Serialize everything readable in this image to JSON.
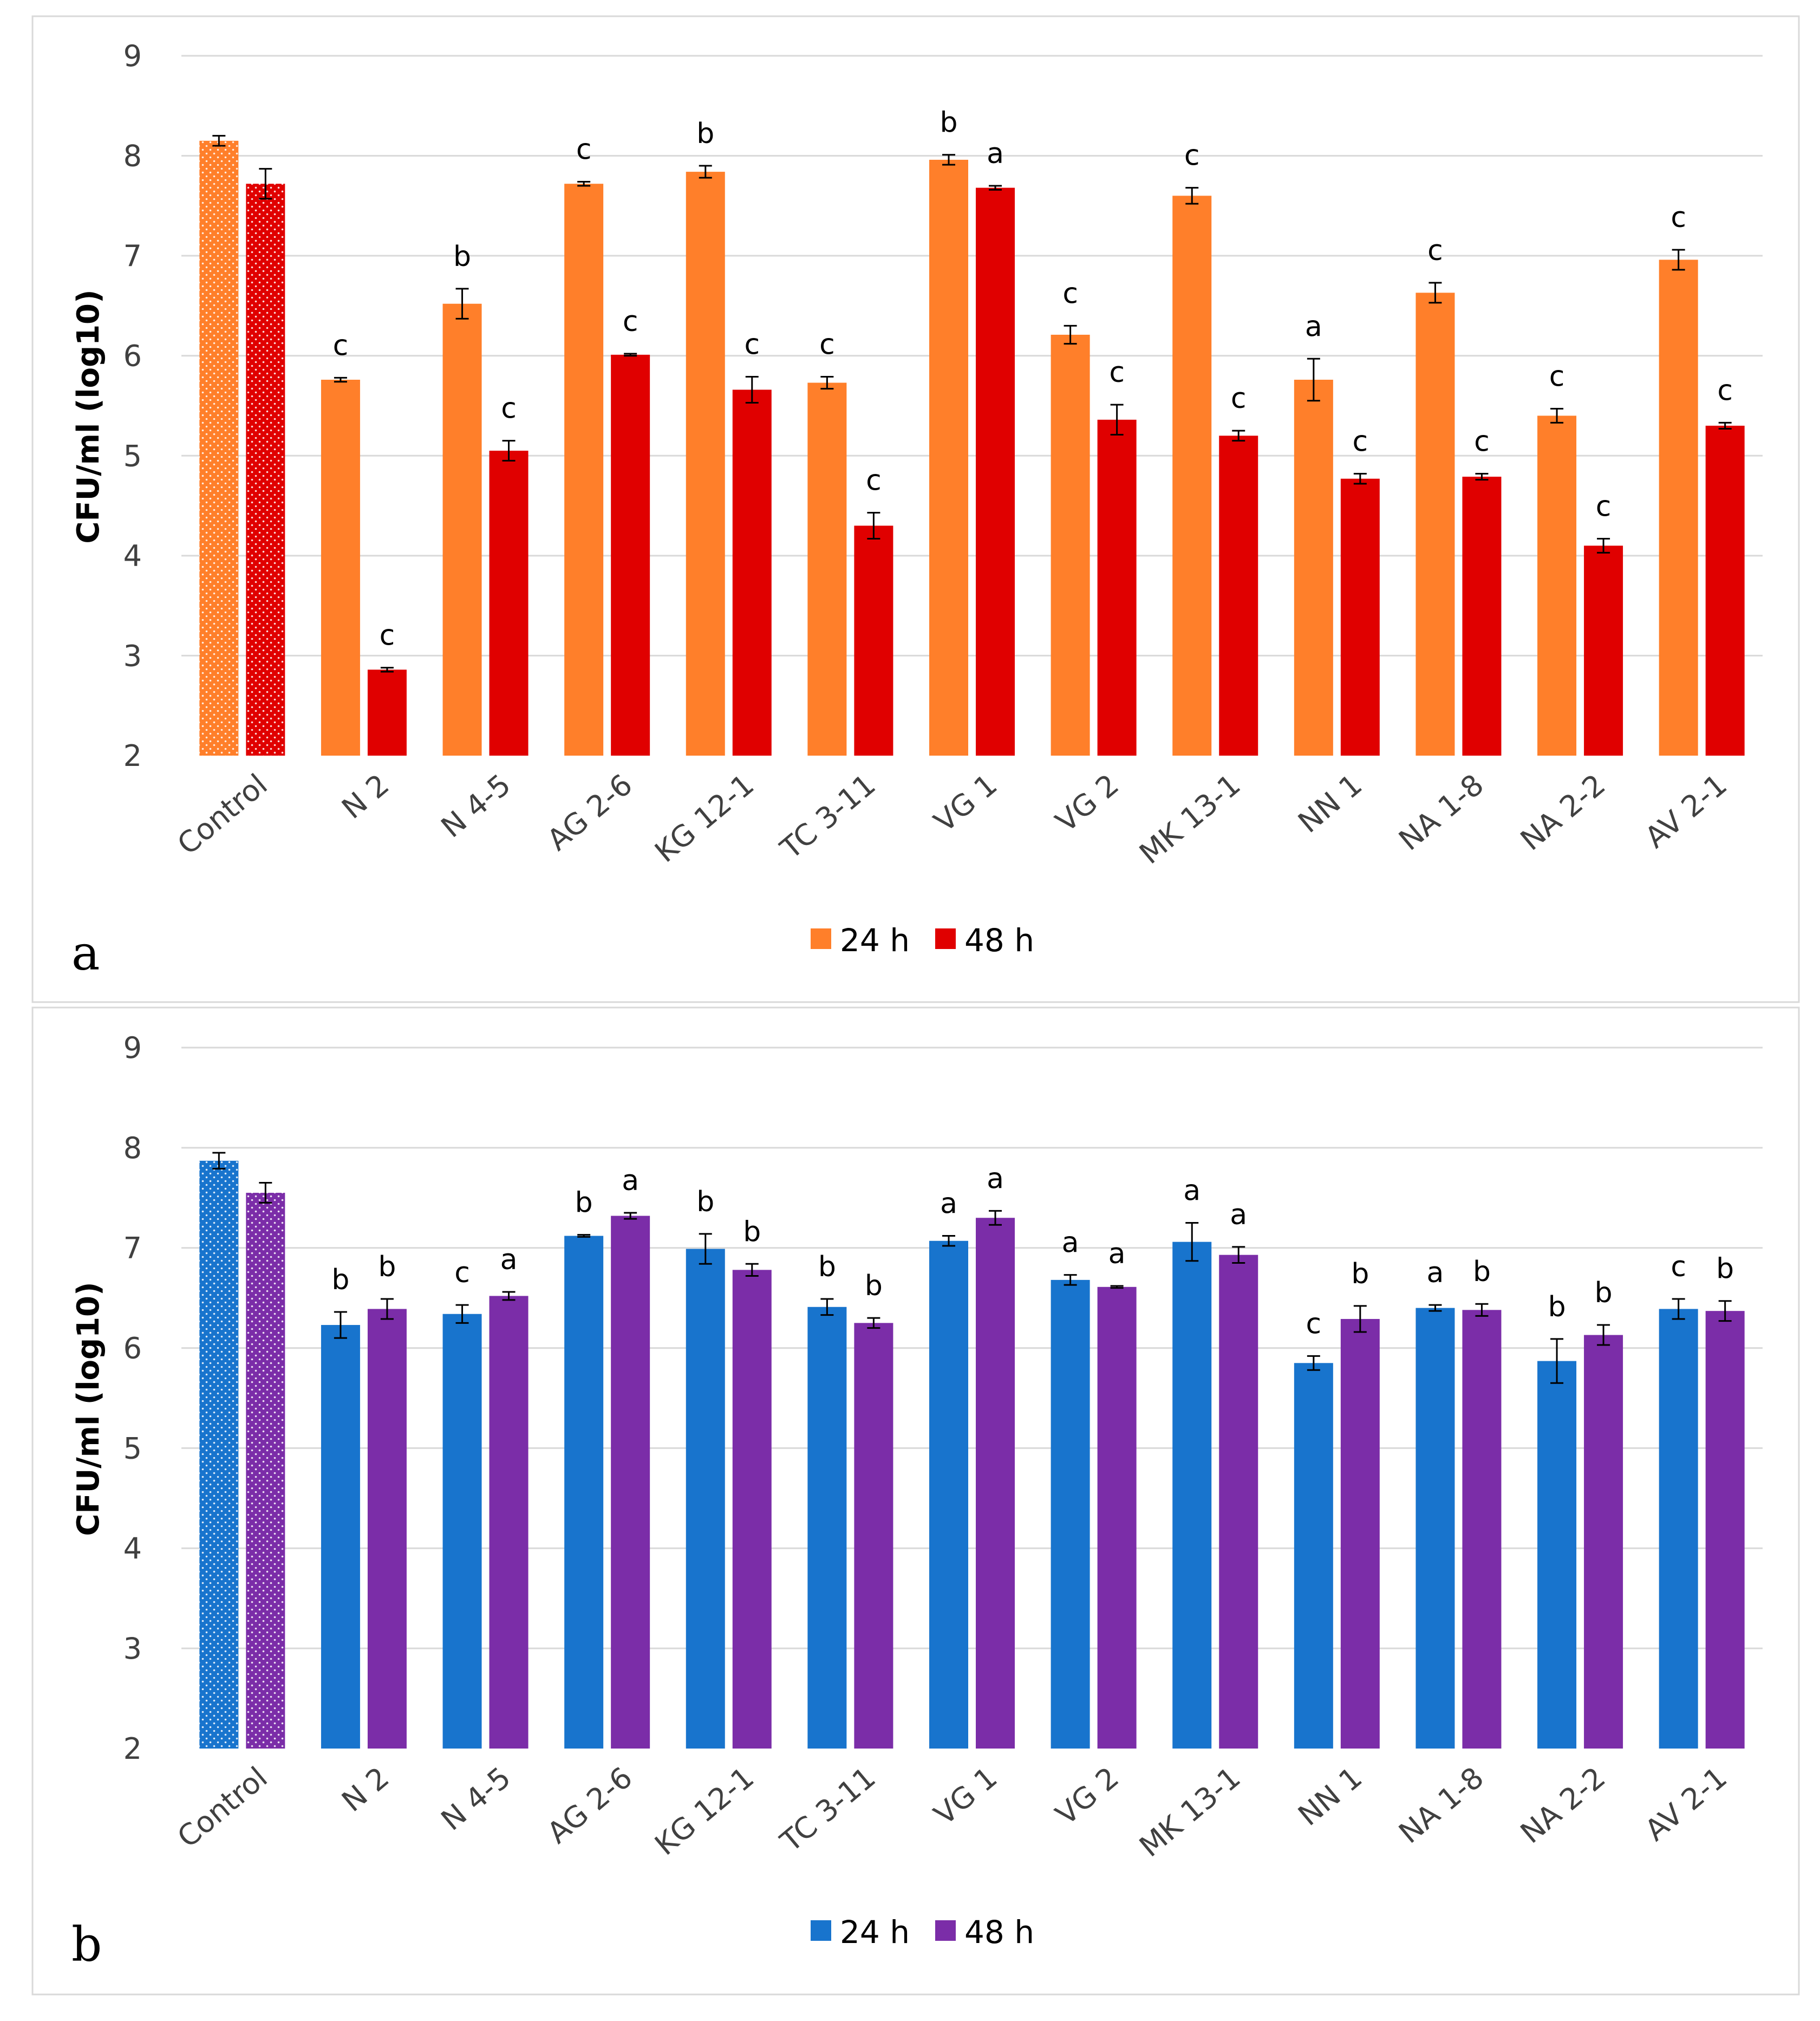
{
  "chart_data": [
    {
      "type": "bar",
      "panel_label": "a",
      "ylabel": "CFU/ml (log10)",
      "ylim": [
        2,
        9
      ],
      "yticks": [
        "2",
        "3",
        "4",
        "5",
        "6",
        "7",
        "8",
        "9"
      ],
      "grid": true,
      "legend_position": "bottom",
      "categories": [
        "Control",
        "N 2",
        "N 4-5",
        "AG 2-6",
        "KG 12-1",
        "TC 3-11",
        "VG 1",
        "VG 2",
        "MK 13-1",
        "NN 1",
        "NA 1-8",
        "NA 2-2",
        "AV 2-1"
      ],
      "series": [
        {
          "name": "24 h",
          "color": "#FF7F2A",
          "values": [
            8.15,
            5.76,
            6.52,
            7.72,
            7.84,
            5.73,
            7.96,
            6.21,
            7.6,
            5.76,
            6.63,
            5.4,
            6.96
          ],
          "errors": [
            0.05,
            0.02,
            0.15,
            0.02,
            0.06,
            0.06,
            0.05,
            0.09,
            0.08,
            0.21,
            0.1,
            0.07,
            0.1
          ],
          "letters": [
            "",
            "c",
            "b",
            "c",
            "b",
            "c",
            "b",
            "c",
            "c",
            "a",
            "c",
            "c",
            "c"
          ]
        },
        {
          "name": "48 h",
          "color": "#E00000",
          "values": [
            7.72,
            2.86,
            5.05,
            6.01,
            5.66,
            4.3,
            7.68,
            5.36,
            5.2,
            4.77,
            4.79,
            4.1,
            5.3
          ],
          "errors": [
            0.15,
            0.02,
            0.1,
            0.01,
            0.13,
            0.13,
            0.02,
            0.15,
            0.05,
            0.05,
            0.03,
            0.07,
            0.03
          ],
          "letters": [
            "",
            "c",
            "c",
            "c",
            "c",
            "c",
            "a",
            "c",
            "c",
            "c",
            "c",
            "c",
            "c"
          ]
        }
      ]
    },
    {
      "type": "bar",
      "panel_label": "b",
      "ylabel": "CFU/ml (log10)",
      "ylim": [
        2,
        9
      ],
      "yticks": [
        "2",
        "3",
        "4",
        "5",
        "6",
        "7",
        "8",
        "9"
      ],
      "grid": true,
      "legend_position": "bottom",
      "categories": [
        "Control",
        "N 2",
        "N 4-5",
        "AG 2-6",
        "KG 12-1",
        "TC 3-11",
        "VG 1",
        "VG 2",
        "MK 13-1",
        "NN 1",
        "NA 1-8",
        "NA 2-2",
        "AV 2-1"
      ],
      "series": [
        {
          "name": "24 h",
          "color": "#1874CD",
          "values": [
            7.87,
            6.23,
            6.34,
            7.12,
            6.99,
            6.41,
            7.07,
            6.68,
            7.06,
            5.85,
            6.4,
            5.87,
            6.39
          ],
          "errors": [
            0.08,
            0.13,
            0.09,
            0.01,
            0.15,
            0.08,
            0.05,
            0.05,
            0.19,
            0.07,
            0.03,
            0.22,
            0.1
          ],
          "letters": [
            "",
            "b",
            "c",
            "b",
            "b",
            "b",
            "a",
            "a",
            "a",
            "c",
            "a",
            "b",
            "c"
          ]
        },
        {
          "name": "48 h",
          "color": "#7B2DA8",
          "values": [
            7.55,
            6.39,
            6.52,
            7.32,
            6.78,
            6.25,
            7.3,
            6.61,
            6.93,
            6.29,
            6.38,
            6.13,
            6.37
          ],
          "errors": [
            0.1,
            0.1,
            0.04,
            0.03,
            0.06,
            0.05,
            0.07,
            0.01,
            0.08,
            0.13,
            0.06,
            0.1,
            0.1
          ],
          "letters": [
            "",
            "b",
            "a",
            "a",
            "b",
            "b",
            "a",
            "a",
            "a",
            "b",
            "b",
            "b",
            "b"
          ]
        }
      ]
    }
  ]
}
